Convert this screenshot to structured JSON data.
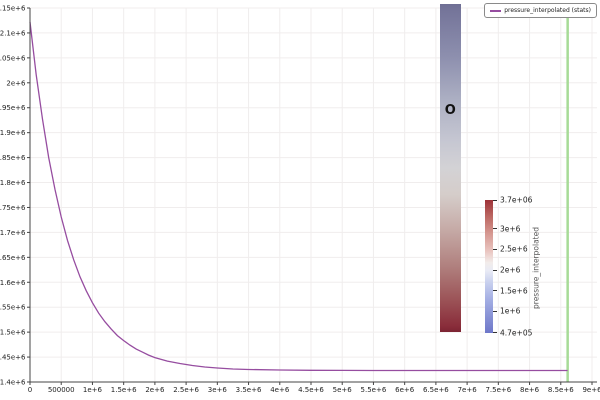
{
  "figure": {
    "background": "#ffffff",
    "legend": {
      "label": "pressure_interpolated (stats)",
      "swatch_color": "#964da0"
    }
  },
  "chart_data": {
    "type": "line",
    "title": "",
    "xlabel": "",
    "ylabel": "",
    "grid": true,
    "grid_color": "#f0eded",
    "axis_color": "#444444",
    "tick_label_color": "#222222",
    "legend_position": "top-right",
    "xlim": [
      0,
      9000000
    ],
    "ylim": [
      1400000,
      2150000
    ],
    "x_ticks": [
      0,
      500000,
      1000000,
      1500000,
      2000000,
      2500000,
      3000000,
      3500000,
      4000000,
      4500000,
      5000000,
      5500000,
      6000000,
      6500000,
      7000000,
      7500000,
      8000000,
      8500000,
      9000000
    ],
    "x_tick_labels": [
      "0",
      "500000",
      "1e+6",
      "1.5e+6",
      "2e+6",
      "2.5e+6",
      "3e+6",
      "3.5e+6",
      "4e+6",
      "4.5e+6",
      "5e+6",
      "5.5e+6",
      "6e+6",
      "6.5e+6",
      "7e+6",
      "7.5e+6",
      "8e+6",
      "8.5e+6",
      "9e+6"
    ],
    "y_ticks": [
      2150000,
      2100000,
      2050000,
      2000000,
      1950000,
      1900000,
      1850000,
      1800000,
      1750000,
      1700000,
      1650000,
      1600000,
      1550000,
      1500000,
      1450000,
      1400000
    ],
    "y_tick_labels": [
      "2.15e+6",
      "2.1e+6",
      "2.05e+6",
      "2e+6",
      "1.95e+6",
      "1.9e+6",
      "1.85e+6",
      "1.8e+6",
      "1.75e+6",
      "1.7e+6",
      "1.65e+6",
      "1.6e+6",
      "1.55e+6",
      "1.5e+6",
      "1.45e+6",
      "1.4e+6"
    ],
    "series": [
      {
        "name": "pressure_interpolated (stats)",
        "color": "#964da0",
        "points": [
          [
            0,
            2122000
          ],
          [
            100000,
            2016000
          ],
          [
            200000,
            1927000
          ],
          [
            300000,
            1850000
          ],
          [
            400000,
            1786000
          ],
          [
            500000,
            1731000
          ],
          [
            600000,
            1684000
          ],
          [
            700000,
            1645000
          ],
          [
            800000,
            1611000
          ],
          [
            900000,
            1583000
          ],
          [
            1000000,
            1559000
          ],
          [
            1100000,
            1538000
          ],
          [
            1200000,
            1521000
          ],
          [
            1300000,
            1506000
          ],
          [
            1400000,
            1493000
          ],
          [
            1500000,
            1483000
          ],
          [
            1600000,
            1474000
          ],
          [
            1700000,
            1466000
          ],
          [
            1800000,
            1460000
          ],
          [
            1900000,
            1454000
          ],
          [
            2000000,
            1449000
          ],
          [
            2200000,
            1442000
          ],
          [
            2400000,
            1437000
          ],
          [
            2600000,
            1433000
          ],
          [
            2800000,
            1430000
          ],
          [
            3000000,
            1428000
          ],
          [
            3250000,
            1426000
          ],
          [
            3500000,
            1425000
          ],
          [
            4000000,
            1424000
          ],
          [
            4500000,
            1423500
          ],
          [
            5000000,
            1423200
          ],
          [
            5500000,
            1423000
          ],
          [
            6000000,
            1423000
          ],
          [
            6500000,
            1423000
          ],
          [
            7000000,
            1423000
          ],
          [
            7500000,
            1423000
          ],
          [
            8000000,
            1423000
          ],
          [
            8610000,
            1423000
          ]
        ]
      }
    ],
    "time_marker": {
      "x": 8610000,
      "color": "#a7db97"
    },
    "range_bar": {
      "x": 6730000,
      "value_top": 2158000,
      "value_bottom": 1500000,
      "marker_label": "O",
      "marker_value": 1944000,
      "color_top": "#75759a",
      "color_bottom": "#8a2e3b"
    }
  },
  "colorbar": {
    "title": "pressure_interpolated",
    "range": [
      470000,
      3700000
    ],
    "max_color": "#9d3238",
    "min_color": "#6e77c9",
    "ticks": [
      {
        "value": 3700000,
        "label": "3.7e+06"
      },
      {
        "value": 3000000,
        "label": "3e+6"
      },
      {
        "value": 2500000,
        "label": "2.5e+6"
      },
      {
        "value": 2000000,
        "label": "2e+6"
      },
      {
        "value": 1500000,
        "label": "1.5e+6"
      },
      {
        "value": 1000000,
        "label": "1e+6"
      },
      {
        "value": 470000,
        "label": "4.7e+05"
      }
    ]
  }
}
